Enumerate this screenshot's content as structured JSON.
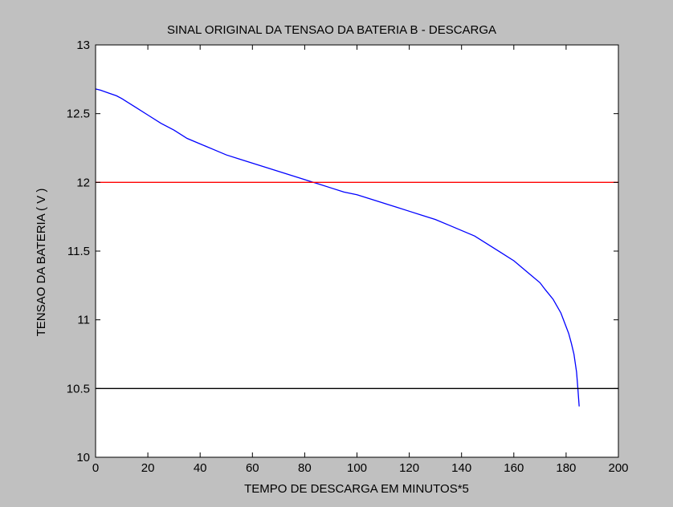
{
  "figure": {
    "background": "#c0c0c0"
  },
  "chart_data": {
    "type": "line",
    "title": "SINAL ORIGINAL DA TENSAO DA BATERIA B - DESCARGA",
    "xlabel": "TEMPO DE DESCARGA EM MINUTOS*5",
    "ylabel": "TENSAO DA BATERIA ( V )",
    "xlim": [
      0,
      200
    ],
    "ylim": [
      10,
      13
    ],
    "xticks": [
      0,
      20,
      40,
      60,
      80,
      100,
      120,
      140,
      160,
      180,
      200
    ],
    "yticks": [
      10,
      10.5,
      11,
      11.5,
      12,
      12.5,
      13
    ],
    "grid": false,
    "legend": "none",
    "series": [
      {
        "color": "#0000ff",
        "x": [
          0,
          2,
          5,
          8,
          10,
          15,
          20,
          25,
          30,
          35,
          40,
          45,
          50,
          55,
          60,
          65,
          70,
          75,
          80,
          85,
          90,
          95,
          100,
          105,
          110,
          115,
          120,
          125,
          130,
          135,
          140,
          145,
          150,
          155,
          160,
          165,
          170,
          172,
          175,
          178,
          180,
          181,
          182,
          183,
          184,
          184.5,
          185
        ],
        "y": [
          12.68,
          12.67,
          12.65,
          12.63,
          12.61,
          12.55,
          12.49,
          12.43,
          12.38,
          12.32,
          12.28,
          12.24,
          12.2,
          12.17,
          12.14,
          12.11,
          12.08,
          12.05,
          12.02,
          11.99,
          11.96,
          11.93,
          11.91,
          11.88,
          11.85,
          11.82,
          11.79,
          11.76,
          11.73,
          11.69,
          11.65,
          11.61,
          11.55,
          11.49,
          11.43,
          11.35,
          11.27,
          11.22,
          11.15,
          11.05,
          10.95,
          10.9,
          10.83,
          10.75,
          10.62,
          10.5,
          10.37
        ]
      },
      {
        "color": "#ff0000",
        "x": [
          0,
          200
        ],
        "y": [
          12,
          12
        ]
      },
      {
        "color": "#000000",
        "x": [
          0,
          200
        ],
        "y": [
          10.5,
          10.5
        ]
      }
    ]
  }
}
